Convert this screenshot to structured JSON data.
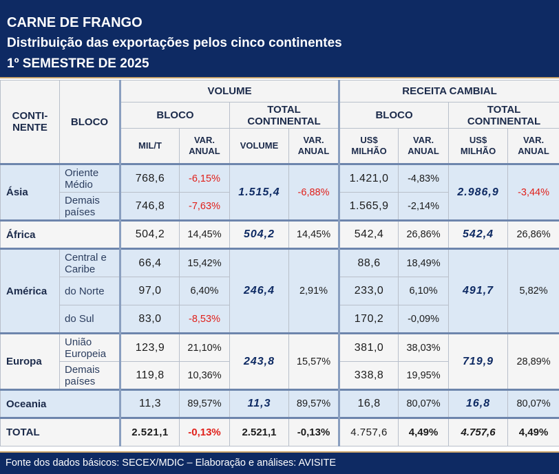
{
  "header": {
    "title": "CARNE DE FRANGO",
    "subtitle": "Distribuição das exportações pelos cinco continentes",
    "period": "1º SEMESTRE DE 2025"
  },
  "columns": {
    "continente": "CONTI-\nNENTE",
    "continente_l1": "CONTI-",
    "continente_l2": "NENTE",
    "bloco": "BLOCO",
    "volume": "VOLUME",
    "receita": "RECEITA CAMBIAL",
    "vol_bloco": "BLOCO",
    "vol_total_l1": "TOTAL",
    "vol_total_l2": "CONTINENTAL",
    "rec_bloco": "BLOCO",
    "rec_total_l1": "TOTAL",
    "rec_total_l2": "CONTINENTAL",
    "milt": "MIL/T",
    "var_l1": "VAR.",
    "var_l2": "ANUAL",
    "volume_sub": "VOLUME",
    "us_l1": "US$",
    "us_l2": "MILHÃO"
  },
  "rows": {
    "asia": {
      "name": "Ásia",
      "b1": {
        "l1": "Oriente",
        "l2": "Médio",
        "vol": "768,6",
        "var": "-6,15%",
        "rec": "1.421,0",
        "rvar": "-4,83%"
      },
      "b2": {
        "l1": "Demais",
        "l2": "países",
        "vol": "746,8",
        "var": "-7,63%",
        "rec": "1.565,9",
        "rvar": "-2,14%"
      },
      "vol_total": "1.515,4",
      "vol_var": "-6,88%",
      "rec_total": "2.986,9",
      "rec_var": "-3,44%"
    },
    "africa": {
      "name": "África",
      "vol": "504,2",
      "var": "14,45%",
      "vol_total": "504,2",
      "vol_var": "14,45%",
      "rec": "542,4",
      "rvar": "26,86%",
      "rec_total": "542,4",
      "rec_var": "26,86%"
    },
    "america": {
      "name": "América",
      "b1": {
        "l1": "Central e",
        "l2": "Caribe",
        "vol": "66,4",
        "var": "15,42%",
        "rec": "88,6",
        "rvar": "18,49%"
      },
      "b2": {
        "label": "do Norte",
        "vol": "97,0",
        "var": "6,40%",
        "rec": "233,0",
        "rvar": "6,10%"
      },
      "b3": {
        "label": "do Sul",
        "vol": "83,0",
        "var": "-8,53%",
        "rec": "170,2",
        "rvar": "-0,09%"
      },
      "vol_total": "246,4",
      "vol_var": "2,91%",
      "rec_total": "491,7",
      "rec_var": "5,82%"
    },
    "europa": {
      "name": "Europa",
      "b1": {
        "l1": "União",
        "l2": "Europeia",
        "vol": "123,9",
        "var": "21,10%",
        "rec": "381,0",
        "rvar": "38,03%"
      },
      "b2": {
        "l1": "Demais",
        "l2": "países",
        "vol": "119,8",
        "var": "10,36%",
        "rec": "338,8",
        "rvar": "19,95%"
      },
      "vol_total": "243,8",
      "vol_var": "15,57%",
      "rec_total": "719,9",
      "rec_var": "28,89%"
    },
    "oceania": {
      "name": "Oceania",
      "vol": "11,3",
      "var": "89,57%",
      "vol_total": "11,3",
      "vol_var": "89,57%",
      "rec": "16,8",
      "rvar": "80,07%",
      "rec_total": "16,8",
      "rec_var": "80,07%"
    },
    "total": {
      "name": "TOTAL",
      "vol": "2.521,1",
      "var": "-0,13%",
      "vol_total": "2.521,1",
      "vol_var": "-0,13%",
      "rec": "4.757,6",
      "rvar": "4,49%",
      "rec_total": "4.757,6",
      "rec_var": "4,49%"
    }
  },
  "footer": "Fonte dos dados básicos: SECEX/MDIC – Elaboração e análises: AVISITE",
  "colors": {
    "navy": "#0e2a63",
    "negative": "#e0201a",
    "row_blue": "#dce8f5"
  }
}
